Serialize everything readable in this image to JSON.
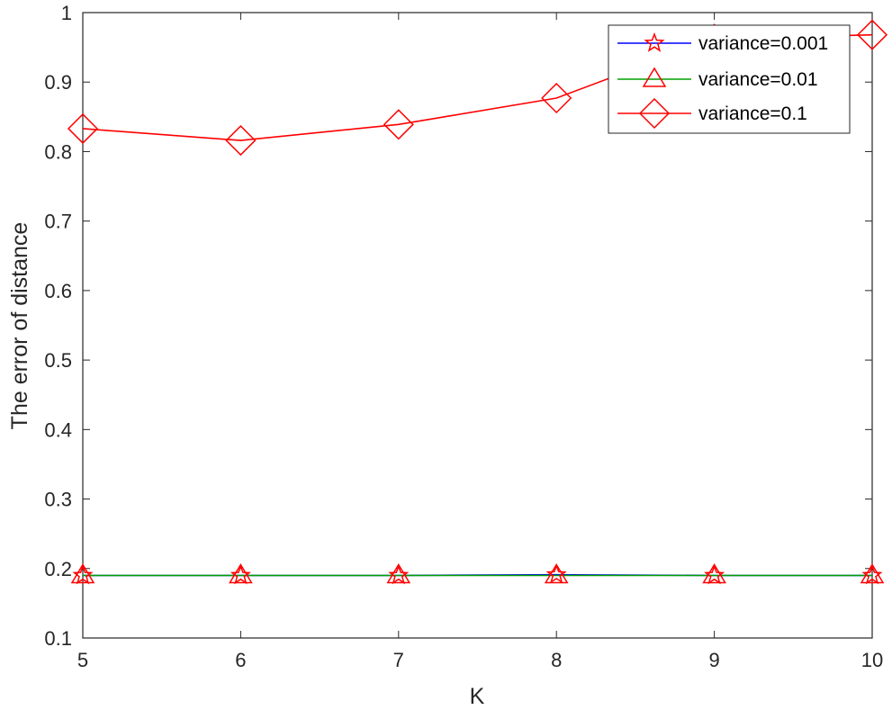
{
  "chart_data": {
    "type": "line",
    "title": "",
    "xlabel": "K",
    "ylabel": "The error of distance",
    "xlim": [
      5,
      10
    ],
    "ylim": [
      0.1,
      1
    ],
    "x": [
      5,
      6,
      7,
      8,
      9,
      10
    ],
    "x_ticks": [
      "5",
      "6",
      "7",
      "8",
      "9",
      "10"
    ],
    "y_ticks": [
      "0.1",
      "0.2",
      "0.3",
      "0.4",
      "0.5",
      "0.6",
      "0.7",
      "0.8",
      "0.9",
      "1"
    ],
    "grid": false,
    "legend_position": "top-right",
    "series": [
      {
        "name": "variance=0.001",
        "color": "#0000ff",
        "marker": "star",
        "values": [
          0.19,
          0.19,
          0.19,
          0.191,
          0.19,
          0.19
        ]
      },
      {
        "name": "variance=0.01",
        "color": "#00a000",
        "marker": "triangle",
        "values": [
          0.19,
          0.19,
          0.19,
          0.19,
          0.19,
          0.19
        ]
      },
      {
        "name": "variance=0.1",
        "color": "#ff0000",
        "marker": "diamond",
        "values": [
          0.833,
          0.816,
          0.839,
          0.877,
          0.962,
          0.968
        ]
      }
    ]
  }
}
